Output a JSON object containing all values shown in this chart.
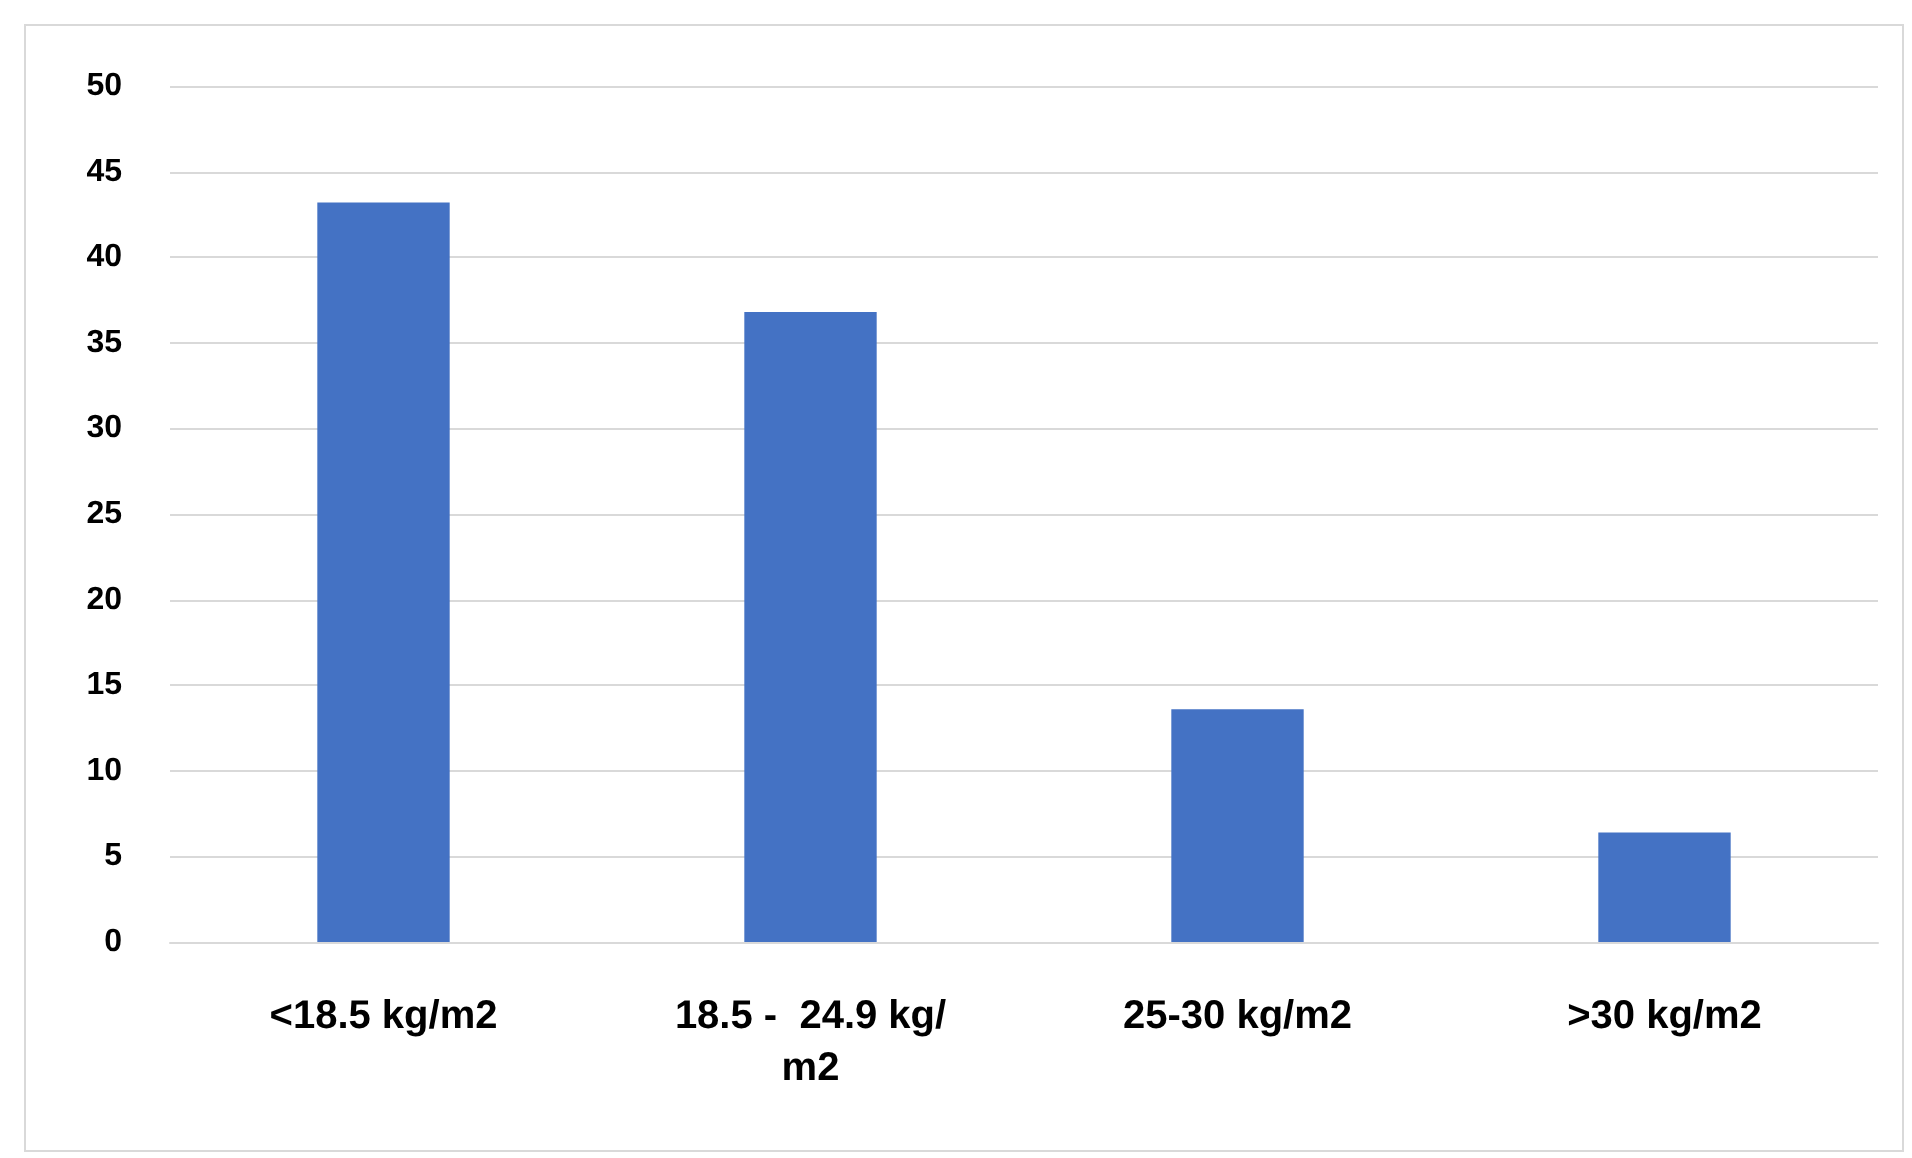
{
  "chart_data": {
    "type": "bar",
    "categories": [
      "<18.5 kg/m2",
      "18.5 -  24.9 kg/m2",
      "25-30 kg/m2",
      ">30 kg/m2"
    ],
    "values": [
      43.2,
      36.8,
      13.6,
      6.4
    ],
    "color": "#4472c4",
    "ylim": [
      0,
      50
    ],
    "yticks": [
      0,
      5,
      10,
      15,
      20,
      25,
      30,
      35,
      40,
      45,
      50
    ],
    "grid": "y"
  }
}
